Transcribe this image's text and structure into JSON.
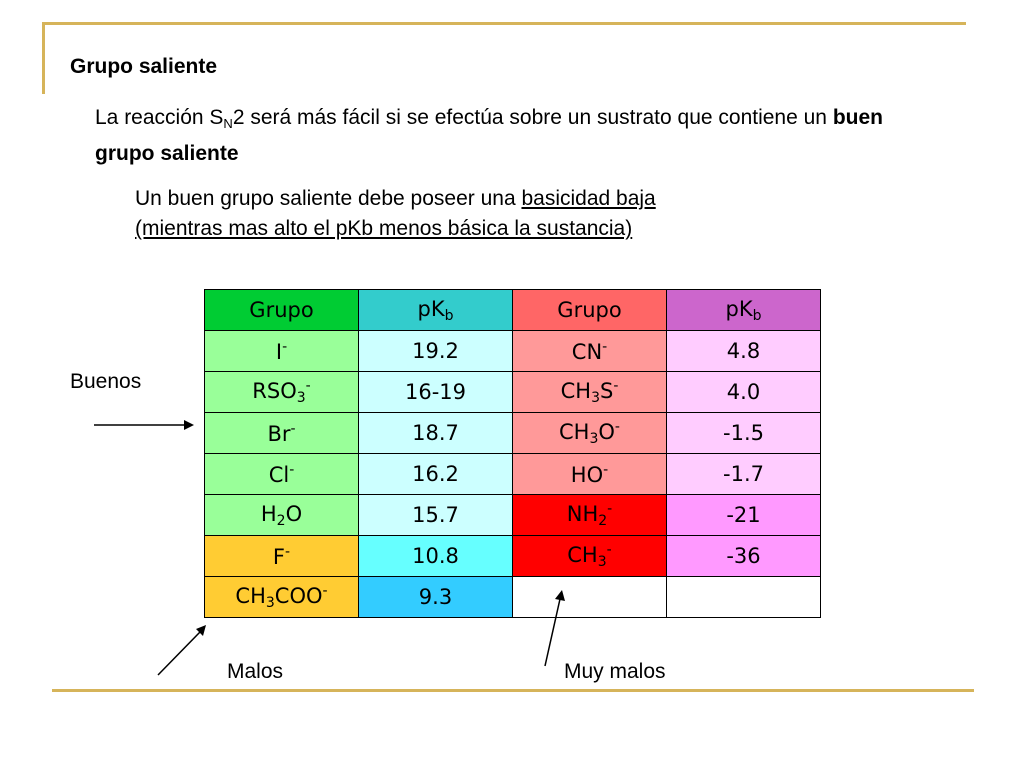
{
  "title": "Grupo saliente",
  "para1": {
    "before": "La reacción S",
    "sub": "N",
    "after": "2 será más fácil si se efectúa sobre un sustrato que contiene un ",
    "bold": "buen grupo saliente"
  },
  "para2": {
    "before": "Un buen grupo saliente debe poseer una ",
    "underlined1": "basicidad baja",
    "underlined2": "(mientras mas alto el pKb menos básica la sustancia)"
  },
  "table": {
    "header": [
      "Grupo",
      "pK",
      "b",
      "Grupo",
      "pK",
      "b"
    ],
    "rows": [
      {
        "g1": "I",
        "g1_sup": "-",
        "v1": "19.2",
        "g2": "CN",
        "g2_sup": "-",
        "v2": "4.8"
      },
      {
        "g1": "RSO",
        "g1_sub": "3",
        "g1_sup": "-",
        "v1": "16-19",
        "g2": "CH",
        "g2_sub": "3",
        "g2_tail": "S",
        "g2_sup": "-",
        "v2": "4.0"
      },
      {
        "g1": "Br",
        "g1_sup": "-",
        "v1": "18.7",
        "g2": "CH",
        "g2_sub": "3",
        "g2_tail": "O",
        "g2_sup": "-",
        "v2": "-1.5"
      },
      {
        "g1": "Cl",
        "g1_sup": "-",
        "v1": "16.2",
        "g2": "HO",
        "g2_sup": "-",
        "v2": "-1.7"
      },
      {
        "g1": "H",
        "g1_sub": "2",
        "g1_tail": "O",
        "v1": "15.7",
        "g2": "NH",
        "g2_sub": "2",
        "g2_sup": "-",
        "v2": "-21"
      },
      {
        "g1": "F",
        "g1_sup": "-",
        "v1": "10.8",
        "g2": "CH",
        "g2_sub": "3",
        "g2_sup": "-",
        "v2": "-36"
      },
      {
        "g1": "CH",
        "g1_sub": "3",
        "g1_tail": "COO",
        "g1_sup": "-",
        "v1": "9.3",
        "g2": "",
        "v2": ""
      }
    ]
  },
  "labels": {
    "buenos": "Buenos",
    "malos": "Malos",
    "muy_malos": "Muy malos"
  },
  "colors": {
    "frame": "#d6b45a",
    "header_grupo1": "#00cc33",
    "header_pkb1": "#33cccc",
    "header_grupo2": "#ff6666",
    "header_pkb2": "#cc66cc"
  }
}
